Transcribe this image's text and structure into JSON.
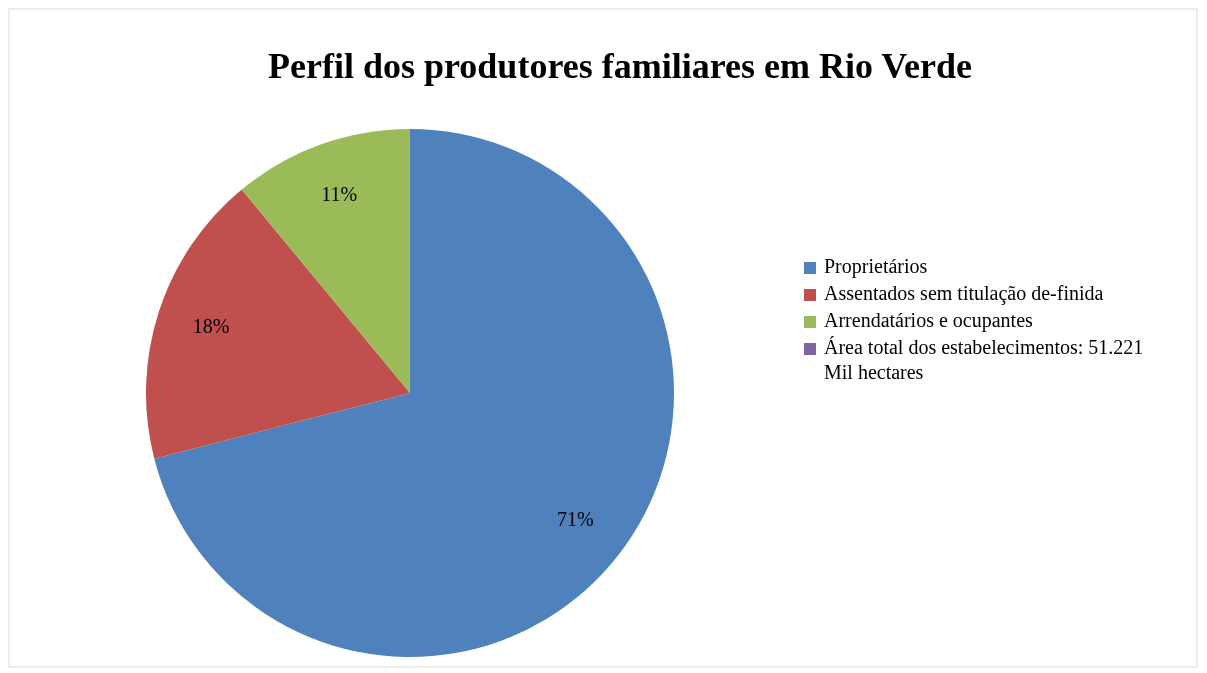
{
  "chart_data": {
    "type": "pie",
    "title": "Perfil dos produtores familiares em Rio Verde",
    "categories": [
      "Proprietários",
      "Assentados sem titulação de-finida",
      "Arrendatários e ocupantes",
      "Área total dos estabelecimentos: 51.221 Mil hectares"
    ],
    "values": [
      71,
      18,
      11,
      0
    ],
    "value_labels": [
      "71%",
      "18%",
      "11%",
      null
    ],
    "colors": [
      "#4f81bd",
      "#c0504d",
      "#9bbb59",
      "#8064a2"
    ],
    "legend": "right"
  }
}
